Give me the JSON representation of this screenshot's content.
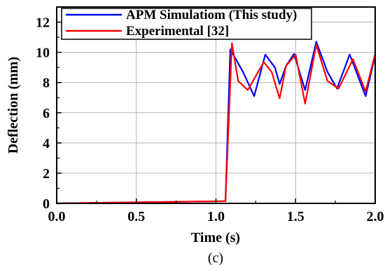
{
  "chart_data": {
    "type": "line",
    "title": "",
    "xlabel": "Time (s)",
    "ylabel": "Deflection (mm)",
    "caption": "(c)",
    "xlim": [
      0,
      2
    ],
    "ylim": [
      0,
      13
    ],
    "xticks": [
      0,
      0.5,
      1,
      1.5,
      2
    ],
    "xtick_labels": [
      "0.0",
      "0.5",
      "1.0",
      "1.5",
      "2.0"
    ],
    "yticks": [
      0,
      2,
      4,
      6,
      8,
      10,
      12
    ],
    "ytick_labels": [
      "0",
      "2",
      "4",
      "6",
      "8",
      "10",
      "12"
    ],
    "grid": true,
    "legend_position": "top-left",
    "series": [
      {
        "name": "APM Simulatiom (This study)",
        "color": "#0000ff",
        "x": [
          0,
          1.06,
          1.09,
          1.17,
          1.24,
          1.31,
          1.37,
          1.4,
          1.44,
          1.49,
          1.56,
          1.63,
          1.7,
          1.76,
          1.84,
          1.94,
          2.0
        ],
        "y": [
          0,
          0.15,
          10.2,
          8.7,
          7.1,
          9.85,
          9.0,
          7.9,
          9.1,
          9.9,
          7.5,
          10.7,
          8.7,
          7.6,
          9.85,
          7.1,
          9.8
        ]
      },
      {
        "name": "Experimental [32]",
        "color": "#ff0000",
        "x": [
          0,
          1.06,
          1.1,
          1.14,
          1.2,
          1.3,
          1.35,
          1.4,
          1.44,
          1.5,
          1.56,
          1.63,
          1.7,
          1.77,
          1.86,
          1.94,
          2.0
        ],
        "y": [
          0,
          0.15,
          10.6,
          8.1,
          7.5,
          9.35,
          8.7,
          6.95,
          9.1,
          9.85,
          6.6,
          10.5,
          8.1,
          7.6,
          9.55,
          7.4,
          9.9
        ]
      }
    ]
  }
}
